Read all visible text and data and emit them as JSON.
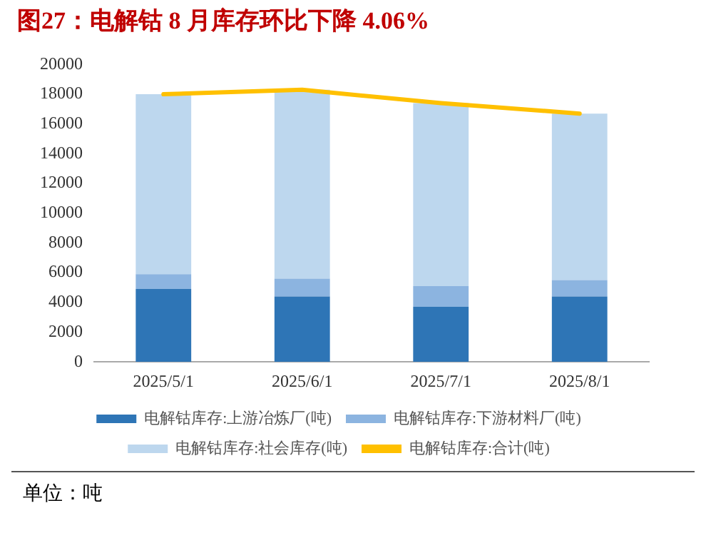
{
  "chart_data": {
    "type": "bar",
    "title": "图27：电解钴 8 月库存环比下降 4.06%",
    "categories": [
      "2025/5/1",
      "2025/6/1",
      "2025/7/1",
      "2025/8/1"
    ],
    "series": [
      {
        "name": "电解钴库存:上游冶炼厂(吨)",
        "color": "#2e75b6",
        "values": [
          4900,
          4400,
          3700,
          4400
        ]
      },
      {
        "name": "电解钴库存:下游材料厂(吨)",
        "color": "#8cb4e0",
        "values": [
          1000,
          1200,
          1400,
          1100
        ]
      },
      {
        "name": "电解钴库存:社会库存(吨)",
        "color": "#bdd7ee",
        "values": [
          12100,
          12700,
          12300,
          11200
        ]
      },
      {
        "name": "电解钴库存:合计(吨)",
        "type": "line",
        "color": "#ffc000",
        "values": [
          18000,
          18300,
          17400,
          16700
        ]
      }
    ],
    "stacked": true,
    "ylim": [
      0,
      20000
    ],
    "yticks": [
      0,
      2000,
      4000,
      6000,
      8000,
      10000,
      12000,
      14000,
      16000,
      18000,
      20000
    ],
    "grid": false,
    "legend": "bottom",
    "marker": "none",
    "annotations": [
      "单位：吨"
    ]
  }
}
